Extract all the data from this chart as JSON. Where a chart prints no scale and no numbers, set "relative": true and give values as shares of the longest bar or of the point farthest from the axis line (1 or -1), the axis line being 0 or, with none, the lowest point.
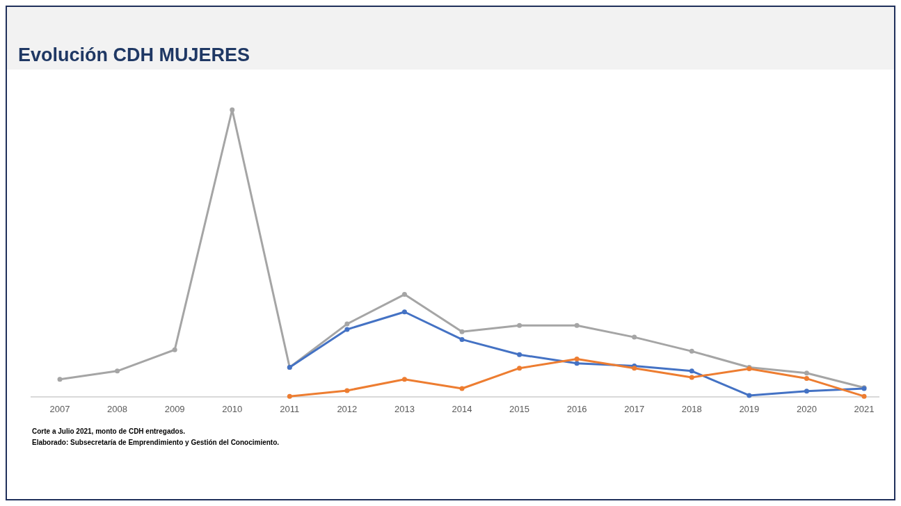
{
  "chart_data": {
    "type": "line",
    "title": "Evolución CDH MUJERES",
    "relative": true,
    "marker": "circle",
    "categories": [
      "2007",
      "2008",
      "2009",
      "2010",
      "2011",
      "2012",
      "2013",
      "2014",
      "2015",
      "2016",
      "2017",
      "2018",
      "2019",
      "2020",
      "2021"
    ],
    "series": [
      {
        "color": "#a5a5a5",
        "values": [
          0.061,
          0.09,
          0.164,
          1,
          0.103,
          0.254,
          0.357,
          0.227,
          0.249,
          0.249,
          0.208,
          0.159,
          0.103,
          0.083,
          0.032
        ]
      },
      {
        "color": "#4472c4",
        "values": [
          null,
          null,
          null,
          null,
          0.103,
          0.235,
          0.296,
          0.2,
          0.147,
          0.117,
          0.108,
          0.09,
          0.005,
          0.02,
          0.029
        ]
      },
      {
        "color": "#ed7d31",
        "values": [
          null,
          null,
          null,
          null,
          0.002,
          0.022,
          0.061,
          0.029,
          0.1,
          0.132,
          0.1,
          0.068,
          0.098,
          0.064,
          0.002
        ]
      }
    ],
    "annotations": [
      "Corte a Julio 2021, monto de CDH entregados.",
      "Elaborado: Subsecretaría de Emprendimiento y Gestión del Conocimiento."
    ]
  }
}
